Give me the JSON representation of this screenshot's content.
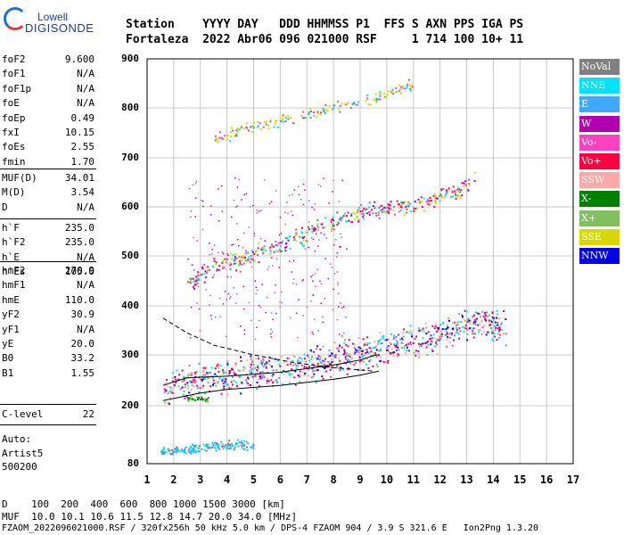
{
  "logo": {
    "brand_top": "Lowell",
    "brand_bottom": "DIGISONDE"
  },
  "header": {
    "line1": "Station    YYYY DAY   DDD HHMMSS P1  FFS S AXN PPS IGA PS",
    "line2": "Fortaleza  2022 Abr06 096 021000 RSF     1 714 100 10+ 11"
  },
  "params_group1": [
    {
      "name": "foF2",
      "value": "9.600"
    },
    {
      "name": "foF1",
      "value": "N/A"
    },
    {
      "name": "foF1p",
      "value": "N/A"
    },
    {
      "name": "foE",
      "value": "N/A"
    },
    {
      "name": "foEp",
      "value": "0.49"
    },
    {
      "name": "fxI",
      "value": "10.15"
    },
    {
      "name": "foEs",
      "value": "2.55"
    },
    {
      "name": "fmin",
      "value": "1.70"
    }
  ],
  "params_group2": [
    {
      "name": "MUF(D)",
      "value": "34.01"
    },
    {
      "name": "M(D)",
      "value": "3.54"
    },
    {
      "name": "D",
      "value": "N/A"
    }
  ],
  "params_group3": [
    {
      "name": "h`F",
      "value": "235.0"
    },
    {
      "name": "h`F2",
      "value": "235.0"
    },
    {
      "name": "h`E",
      "value": "N/A"
    },
    {
      "name": "h`Es",
      "value": "105.0"
    }
  ],
  "params_group4": [
    {
      "name": "hmF2",
      "value": "270.9"
    },
    {
      "name": "hmF1",
      "value": "N/A"
    },
    {
      "name": "hmE",
      "value": "110.0"
    },
    {
      "name": "yF2",
      "value": "30.9"
    },
    {
      "name": "yF1",
      "value": "N/A"
    },
    {
      "name": "yE",
      "value": "20.0"
    },
    {
      "name": "B0",
      "value": "33.2"
    },
    {
      "name": "B1",
      "value": "1.55"
    }
  ],
  "params_group5": [
    {
      "name": "C-level",
      "value": "22"
    }
  ],
  "auto": {
    "line1": "Auto:",
    "line2": "Artist5",
    "line3": "500200"
  },
  "legend": [
    {
      "label": "NoVal",
      "color": "#808080"
    },
    {
      "label": "NNE",
      "color": "#00e0ff"
    },
    {
      "label": "E",
      "color": "#40a8ff"
    },
    {
      "label": "W",
      "color": "#b000b0"
    },
    {
      "label": "Vo-",
      "color": "#ff40c0"
    },
    {
      "label": "Vo+",
      "color": "#ff0040"
    },
    {
      "label": "SSW",
      "color": "#ffa8a8"
    },
    {
      "label": "X-",
      "color": "#008000"
    },
    {
      "label": "X+",
      "color": "#80c060"
    },
    {
      "label": "SSE",
      "color": "#d8d800"
    },
    {
      "label": "NNW",
      "color": "#0000e0"
    }
  ],
  "footer": {
    "line1": "D    100  200  400  600  800 1000 1500 3000 [km]",
    "line2": "MUF  10.0 10.1 10.6 11.5 12.8 14.7 20.0 34.0 [MHz]",
    "line3": "FZAOM_2022096021000.RSF / 320fx256h 50 kHz 5.0 km / DPS-4 FZAOM 904 / 3.9 S 321.6 E   Ion2Png 1.3.20"
  },
  "chart_data": {
    "type": "scatter",
    "xlim": [
      1,
      17
    ],
    "ylim": [
      80,
      900
    ],
    "x_ticks": [
      "1",
      "2",
      "3",
      "4",
      "5",
      "6",
      "7",
      "8",
      "9",
      "10",
      "11",
      "12",
      "13",
      "14",
      "15",
      "16",
      "17"
    ],
    "y_ticks": [
      "80",
      "200",
      "300",
      "400",
      "500",
      "600",
      "700",
      "800",
      "900"
    ],
    "grid": true,
    "traces": [
      {
        "name": "F-trace (1 hop)",
        "points": [
          [
            1.6,
            235
          ],
          [
            2.5,
            250
          ],
          [
            3.5,
            255
          ],
          [
            4.5,
            262
          ],
          [
            5.5,
            268
          ],
          [
            6.5,
            275
          ],
          [
            7.5,
            285
          ],
          [
            8.5,
            298
          ],
          [
            9.5,
            312
          ],
          [
            10.5,
            325
          ],
          [
            11.5,
            335
          ],
          [
            12.5,
            350
          ],
          [
            13.3,
            370
          ],
          [
            14,
            360
          ],
          [
            14.5,
            355
          ]
        ]
      },
      {
        "name": "F-trace (2 hop)",
        "points": [
          [
            2.5,
            450
          ],
          [
            3.5,
            480
          ],
          [
            4.5,
            495
          ],
          [
            5.5,
            515
          ],
          [
            6.5,
            535
          ],
          [
            7.5,
            560
          ],
          [
            8.5,
            580
          ],
          [
            9.5,
            595
          ],
          [
            10.5,
            600
          ],
          [
            11.5,
            615
          ],
          [
            12.5,
            630
          ],
          [
            13.3,
            655
          ]
        ]
      },
      {
        "name": "F-trace (3 hop)",
        "points": [
          [
            3.5,
            740
          ],
          [
            4.5,
            755
          ],
          [
            5.5,
            770
          ],
          [
            6.5,
            780
          ],
          [
            7.5,
            795
          ],
          [
            8.5,
            810
          ],
          [
            9.5,
            820
          ],
          [
            10.5,
            840
          ],
          [
            11,
            850
          ]
        ]
      },
      {
        "name": "Es trace",
        "points": [
          [
            1.5,
            105
          ],
          [
            2.5,
            108
          ],
          [
            3,
            115
          ],
          [
            3.5,
            118
          ],
          [
            4,
            120
          ],
          [
            4.5,
            122
          ],
          [
            5,
            118
          ]
        ]
      },
      {
        "name": "Es 2nd hop",
        "points": [
          [
            2.5,
            215
          ],
          [
            3,
            215
          ],
          [
            3.3,
            212
          ]
        ]
      }
    ],
    "profile_line": [
      [
        1.6,
        210
      ],
      [
        3,
        225
      ],
      [
        4,
        232
      ],
      [
        5,
        236
      ],
      [
        6,
        240
      ],
      [
        7,
        246
      ],
      [
        8,
        252
      ],
      [
        9,
        260
      ],
      [
        9.7,
        268
      ]
    ],
    "profile_upper": [
      [
        1.6,
        240
      ],
      [
        2.5,
        255
      ],
      [
        4,
        258
      ],
      [
        5,
        262
      ],
      [
        6,
        266
      ],
      [
        7,
        273
      ],
      [
        8,
        280
      ],
      [
        9,
        290
      ],
      [
        9.6,
        300
      ]
    ],
    "profile_dashed": [
      [
        1.6,
        375
      ],
      [
        2.5,
        345
      ],
      [
        3.5,
        320
      ],
      [
        5,
        300
      ],
      [
        6.5,
        285
      ],
      [
        8,
        275
      ],
      [
        9.5,
        268
      ]
    ]
  }
}
